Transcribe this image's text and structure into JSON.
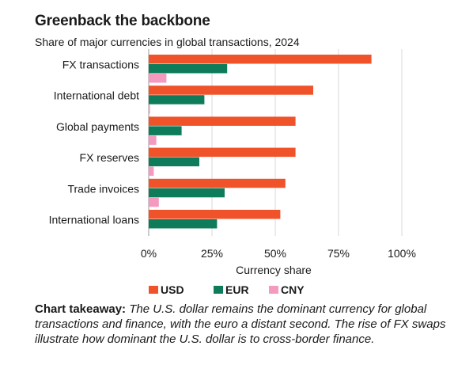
{
  "title": "Greenback the backbone",
  "subtitle": "Share of major currencies in global transactions, 2024",
  "chart_data": {
    "type": "bar",
    "orientation": "horizontal",
    "categories": [
      "FX transactions",
      "International debt",
      "Global payments",
      "FX reserves",
      "Trade invoices",
      "International loans"
    ],
    "series": [
      {
        "name": "USD",
        "color": "#f0522a",
        "values": [
          88,
          65,
          58,
          58,
          54,
          52
        ]
      },
      {
        "name": "EUR",
        "color": "#0e7c5a",
        "values": [
          31,
          22,
          13,
          20,
          30,
          27
        ]
      },
      {
        "name": "CNY",
        "color": "#f49ac1",
        "values": [
          7,
          0.5,
          3,
          2,
          4,
          0
        ]
      }
    ],
    "xlim": [
      0,
      100
    ],
    "xticks": [
      "0%",
      "25%",
      "50%",
      "75%",
      "100%"
    ],
    "xlabel": "Currency share",
    "grid": true,
    "legend_position": "bottom"
  },
  "takeaway": {
    "lead": "Chart takeaway:",
    "body": " The U.S. dollar remains the dominant currency for global transactions and finance, with the euro a distant second. The rise of FX swaps illustrate how dominant the U.S. dollar is to cross-border finance."
  }
}
